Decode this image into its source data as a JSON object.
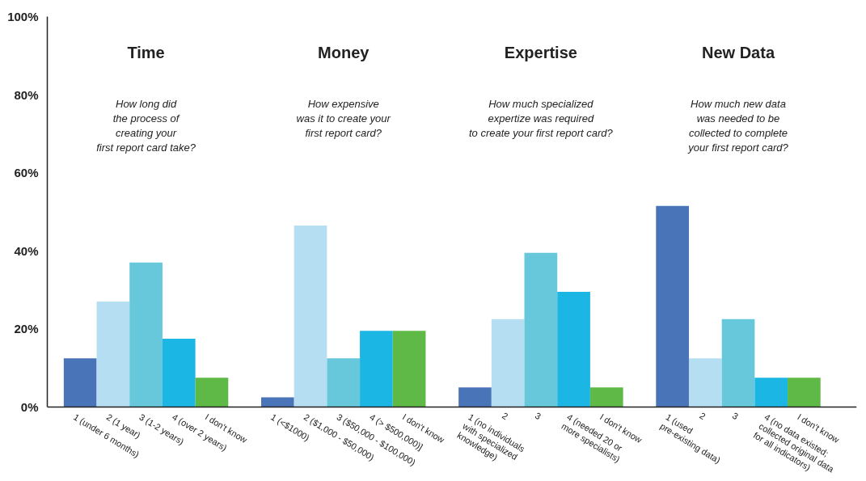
{
  "chart_data": {
    "type": "bar",
    "categories": [
      "1 (under 6 months)",
      "2 (1 year)",
      "3 (1-2 years)",
      "4 (over 2 years)",
      "I don't know",
      null,
      "1 (<$1000)",
      "2 ($1,000 - $50,000)",
      "3 ($50,000 - $100,000)",
      "4 (> $500,000)]",
      "I don't know",
      null,
      "1 (no individuals\nwith specialized\nknowledge)",
      "2",
      "3",
      "4 (needed 20 or\nmore specialists)",
      "I don't know",
      null,
      "1 (used\npre-existing data)",
      "2",
      "3",
      "4 (no data existed;\ncollected original data\nfor all indicators)",
      "I don't know"
    ],
    "values": [
      12.5,
      27,
      37,
      17.5,
      7.5,
      null,
      2.5,
      46.5,
      12.5,
      19.5,
      19.5,
      null,
      5,
      22.5,
      39.5,
      29.5,
      5,
      null,
      51.5,
      12.5,
      22.5,
      7.5,
      7.5
    ],
    "colors": [
      "#4a74b8",
      "#b6def3",
      "#66c8da",
      "#1cb6e4",
      "#5fb946",
      null,
      "#4a74b8",
      "#b6def3",
      "#66c8da",
      "#1cb6e4",
      "#5fb946",
      null,
      "#4a74b8",
      "#b6def3",
      "#66c8da",
      "#1cb6e4",
      "#5fb946",
      null,
      "#4a74b8",
      "#b6def3",
      "#66c8da",
      "#1cb6e4",
      "#5fb946"
    ],
    "ylim": [
      0,
      100
    ],
    "yticks": [
      {
        "value": 0,
        "label": "0%"
      },
      {
        "value": 20,
        "label": "20%"
      },
      {
        "value": 40,
        "label": "40%"
      },
      {
        "value": 60,
        "label": "60%"
      },
      {
        "value": 80,
        "label": "80%"
      },
      {
        "value": 100,
        "label": "100%"
      }
    ],
    "annotations": [
      "Time",
      "How long did\nthe process of\ncreating your\nfirst report card take?",
      "Money",
      "How expensive\nwas it to create your\nfirst report card?",
      "Expertise",
      "How much specialized\nexpertize was required\nto create your first report card?",
      "New Data",
      "How much new data\nwas needed to be\ncollected to complete\nyour first report card?"
    ],
    "grid": false
  }
}
